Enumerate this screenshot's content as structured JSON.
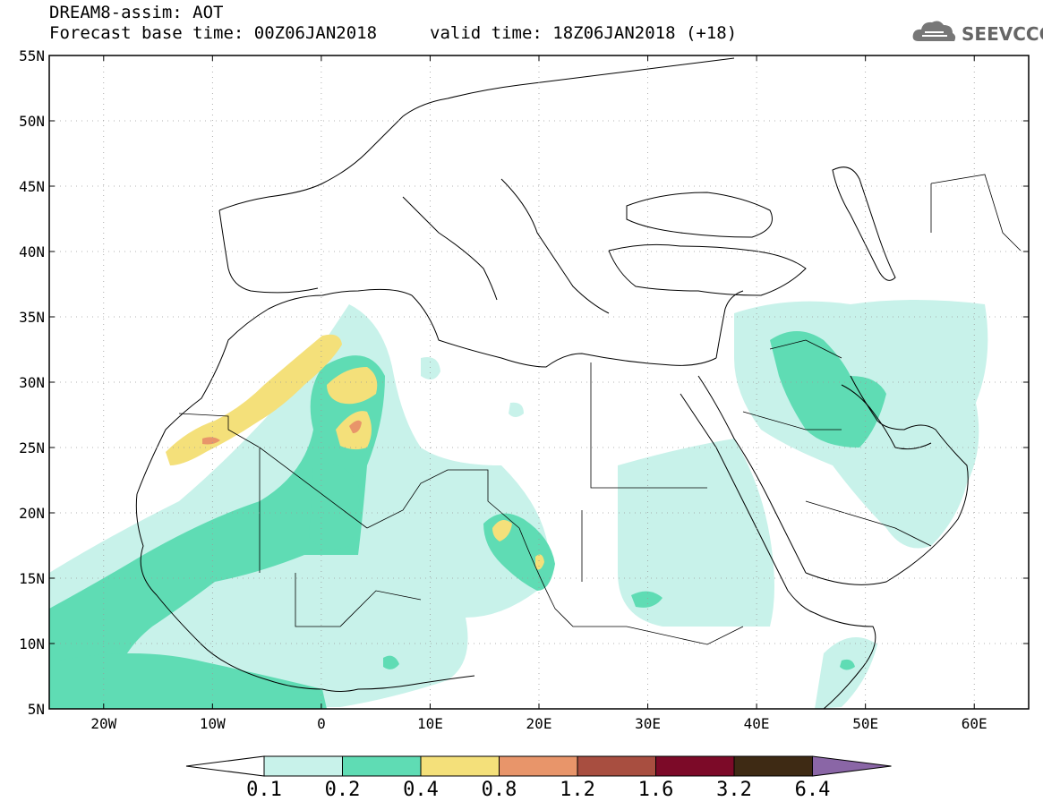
{
  "header": {
    "title_line1": "DREAM8-assim: AOT",
    "title_line2": "Forecast base time: 00Z06JAN2018",
    "valid_time": "valid time: 18Z06JAN2018 (+18)"
  },
  "logo": {
    "text": "SEEVCCC",
    "icon": "cloud-logo-icon"
  },
  "map": {
    "lon_range": [
      -25,
      65
    ],
    "lat_range": [
      5,
      55
    ],
    "lat_ticks": [
      "5N",
      "10N",
      "15N",
      "20N",
      "25N",
      "30N",
      "35N",
      "40N",
      "45N",
      "50N",
      "55N"
    ],
    "lon_ticks": [
      "20W",
      "10W",
      "0",
      "10E",
      "20E",
      "30E",
      "40E",
      "50E",
      "60E"
    ],
    "grid": "dotted"
  },
  "colorbar": {
    "levels": [
      "0.1",
      "0.2",
      "0.4",
      "0.8",
      "1.2",
      "1.6",
      "3.2",
      "6.4"
    ],
    "colors": [
      "#c8f2ea",
      "#5fdcb4",
      "#f4e07a",
      "#e8956a",
      "#a84e40",
      "#7c0a28",
      "#3e2a14",
      "#8a66a6"
    ],
    "under_color": "#ffffff",
    "over_color": "#8a66a6"
  },
  "colors": {
    "frame": "#000000",
    "land_border": "#000000"
  }
}
